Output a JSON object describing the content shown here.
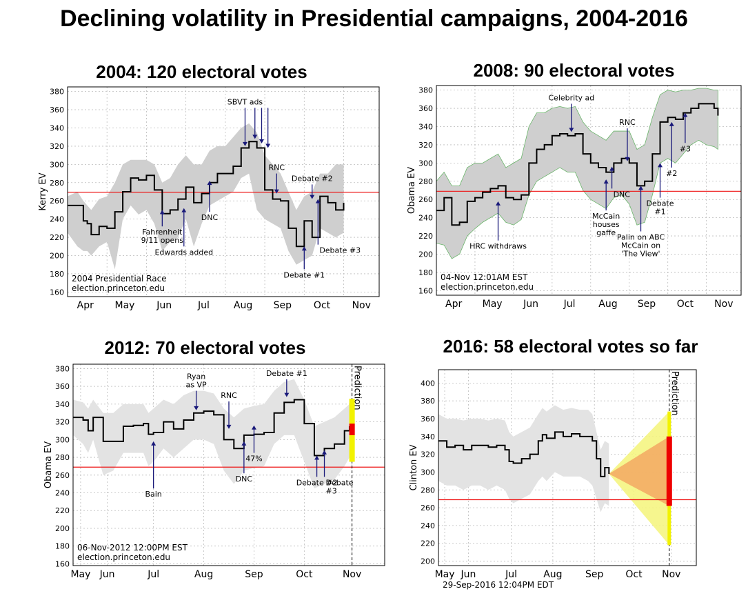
{
  "main_title": "Declining volatility in Presidential campaigns, 2004-2016",
  "chart_data": [
    {
      "type": "line",
      "title": "2004: 120 electoral votes",
      "ylabel": "Kerry EV",
      "ylim": [
        155,
        385
      ],
      "yticks": [
        160,
        180,
        200,
        220,
        240,
        260,
        280,
        300,
        320,
        340,
        360,
        380
      ],
      "xlim": [
        0,
        7.9
      ],
      "months": [
        "Apr",
        "May",
        "Jun",
        "Jul",
        "Aug",
        "Sep",
        "Oct",
        "Nov"
      ],
      "threshold": 269.5,
      "series": [
        {
          "x": [
            0,
            0.25,
            0.4,
            0.5,
            0.6,
            0.8,
            1.0,
            1.2,
            1.4,
            1.6,
            1.8,
            2.0,
            2.2,
            2.4,
            2.6,
            2.8,
            3.0,
            3.2,
            3.4,
            3.6,
            3.8,
            4.0,
            4.2,
            4.4,
            4.6,
            4.8,
            5.0,
            5.2,
            5.4,
            5.6,
            5.8,
            6.0,
            6.2,
            6.4,
            6.6,
            6.8,
            7.0
          ],
          "y": [
            255,
            255,
            238,
            235,
            223,
            232,
            230,
            248,
            270,
            285,
            283,
            288,
            272,
            246,
            250,
            262,
            275,
            258,
            268,
            280,
            290,
            290,
            298,
            318,
            325,
            318,
            272,
            262,
            260,
            230,
            210,
            238,
            220,
            265,
            258,
            250,
            258
          ],
          "lower": [
            225,
            210,
            205,
            205,
            200,
            210,
            215,
            185,
            240,
            255,
            245,
            250,
            235,
            205,
            215,
            220,
            240,
            210,
            235,
            255,
            260,
            265,
            270,
            285,
            290,
            250,
            240,
            235,
            230,
            205,
            190,
            195,
            200,
            230,
            225,
            220,
            225
          ],
          "upper": [
            265,
            270,
            260,
            255,
            250,
            262,
            265,
            280,
            300,
            305,
            305,
            305,
            300,
            280,
            285,
            300,
            310,
            300,
            300,
            315,
            320,
            320,
            330,
            340,
            345,
            335,
            310,
            300,
            290,
            270,
            250,
            265,
            270,
            290,
            290,
            300,
            300
          ]
        }
      ],
      "annotations": [
        {
          "x": 2.4,
          "y": 232,
          "tip": 250,
          "lines": [
            "Fahrenheit",
            "9/11 opens"
          ],
          "pos": "below"
        },
        {
          "x": 2.95,
          "y": 210,
          "tip": 252,
          "lines": [
            "Edwards added"
          ],
          "pos": "below"
        },
        {
          "x": 3.6,
          "y": 248,
          "tip": 282,
          "lines": [
            "DNC"
          ],
          "pos": "below"
        },
        {
          "x": 4.5,
          "y": 362,
          "tip": 320,
          "lines": [
            "SBVT ads"
          ],
          "pos": "above"
        },
        {
          "x": 4.75,
          "y": 362,
          "tip": 328,
          "lines": [],
          "pos": "above"
        },
        {
          "x": 4.92,
          "y": 362,
          "tip": 323,
          "lines": [],
          "pos": "above"
        },
        {
          "x": 5.08,
          "y": 362,
          "tip": 318,
          "lines": [],
          "pos": "above"
        },
        {
          "x": 5.3,
          "y": 290,
          "tip": 268,
          "lines": [
            "RNC"
          ],
          "pos": "above"
        },
        {
          "x": 6.2,
          "y": 278,
          "tip": 262,
          "lines": [
            "Debate #2"
          ],
          "pos": "above"
        },
        {
          "x": 6.0,
          "y": 185,
          "tip": 210,
          "lines": [
            "Debate #1"
          ],
          "pos": "below"
        },
        {
          "x": 6.35,
          "y": 212,
          "tip": 262,
          "lines": [
            "Debate #3"
          ],
          "pos": "right"
        }
      ],
      "corner_text": [
        "2004 Presidential Race",
        "election.princeton.edu"
      ]
    },
    {
      "type": "line",
      "title": "2008: 90 electoral votes",
      "ylabel": "Obama EV",
      "ylim": [
        155,
        385
      ],
      "yticks": [
        160,
        180,
        200,
        220,
        240,
        260,
        280,
        300,
        320,
        340,
        360,
        380
      ],
      "xlim": [
        0,
        7.9
      ],
      "months": [
        "Apr",
        "May",
        "Jun",
        "Jul",
        "Aug",
        "Sep",
        "Oct",
        "Nov"
      ],
      "threshold": 269,
      "series": [
        {
          "x": [
            0,
            0.2,
            0.4,
            0.6,
            0.8,
            1.0,
            1.2,
            1.4,
            1.6,
            1.8,
            2.0,
            2.2,
            2.4,
            2.6,
            2.8,
            3.0,
            3.2,
            3.4,
            3.6,
            3.8,
            4.0,
            4.2,
            4.4,
            4.6,
            4.8,
            5.0,
            5.2,
            5.4,
            5.6,
            5.8,
            6.0,
            6.2,
            6.4,
            6.6,
            6.8,
            7.0,
            7.2,
            7.3
          ],
          "y": [
            248,
            262,
            232,
            235,
            258,
            262,
            268,
            272,
            275,
            262,
            260,
            265,
            300,
            315,
            320,
            330,
            332,
            330,
            332,
            310,
            300,
            295,
            290,
            300,
            305,
            300,
            275,
            280,
            310,
            345,
            350,
            348,
            355,
            360,
            365,
            365,
            360,
            352
          ],
          "lower": [
            212,
            210,
            195,
            200,
            220,
            228,
            235,
            240,
            245,
            235,
            232,
            238,
            265,
            280,
            285,
            290,
            295,
            290,
            290,
            270,
            260,
            255,
            250,
            262,
            265,
            255,
            232,
            235,
            265,
            300,
            305,
            300,
            310,
            320,
            325,
            320,
            318,
            315
          ],
          "upper": [
            280,
            290,
            275,
            275,
            295,
            300,
            300,
            305,
            310,
            295,
            300,
            305,
            340,
            355,
            355,
            360,
            362,
            360,
            362,
            345,
            335,
            330,
            325,
            335,
            335,
            335,
            315,
            320,
            350,
            375,
            380,
            378,
            380,
            380,
            382,
            382,
            380,
            380
          ]
        }
      ],
      "annotations": [
        {
          "x": 1.6,
          "y": 215,
          "tip": 258,
          "lines": [
            "HRC withdraws"
          ],
          "pos": "below"
        },
        {
          "x": 3.5,
          "y": 365,
          "tip": 334,
          "lines": [
            "Celebrity ad"
          ],
          "pos": "above"
        },
        {
          "x": 4.95,
          "y": 338,
          "tip": 302,
          "lines": [
            "RNC"
          ],
          "pos": "above"
        },
        {
          "x": 4.55,
          "y": 272,
          "tip": 296,
          "lines": [
            "DNC"
          ],
          "pos": "right"
        },
        {
          "x": 4.4,
          "y": 248,
          "tip": 282,
          "lines": [
            "McCain",
            "houses",
            "gaffe"
          ],
          "pos": "below"
        },
        {
          "x": 5.3,
          "y": 225,
          "tip": 275,
          "lines": [
            "Palin on ABC",
            "McCain on",
            "'The View'"
          ],
          "pos": "below"
        },
        {
          "x": 5.8,
          "y": 262,
          "tip": 300,
          "lines": [
            "Debate",
            "#1"
          ],
          "pos": "below"
        },
        {
          "x": 6.1,
          "y": 295,
          "tip": 345,
          "lines": [
            "#2"
          ],
          "pos": "below"
        },
        {
          "x": 6.45,
          "y": 322,
          "tip": 355,
          "lines": [
            "#3"
          ],
          "pos": "below"
        }
      ],
      "corner_text": [
        "04-Nov 12:01AM EST",
        "election.princeton.edu"
      ]
    },
    {
      "type": "line",
      "title": "2012: 70 electoral votes",
      "ylabel": "Obama EV",
      "ylim": [
        158,
        385
      ],
      "yticks": [
        160,
        180,
        200,
        220,
        240,
        260,
        280,
        300,
        320,
        340,
        360,
        380
      ],
      "xlim": [
        0,
        6.2
      ],
      "months": [
        "May",
        "Jun",
        "Jul",
        "Aug",
        "Sep",
        "Oct",
        "Nov"
      ],
      "month_x": [
        0.15,
        0.68,
        1.6,
        2.6,
        3.6,
        4.6,
        5.55
      ],
      "threshold": 269,
      "prediction_x": 5.55,
      "prediction_label": "Prediction",
      "prediction_range": [
        275,
        346
      ],
      "prediction_core": [
        305,
        318
      ],
      "series": [
        {
          "x": [
            0,
            0.2,
            0.3,
            0.4,
            0.6,
            0.8,
            1.0,
            1.2,
            1.4,
            1.5,
            1.6,
            1.8,
            2.0,
            2.2,
            2.4,
            2.6,
            2.8,
            3.0,
            3.2,
            3.4,
            3.6,
            3.8,
            4.0,
            4.2,
            4.4,
            4.6,
            4.8,
            5.0,
            5.2,
            5.4,
            5.5
          ],
          "y": [
            325,
            322,
            310,
            325,
            298,
            298,
            315,
            316,
            318,
            306,
            308,
            320,
            312,
            322,
            330,
            332,
            328,
            300,
            290,
            305,
            306,
            308,
            330,
            342,
            345,
            318,
            282,
            290,
            295,
            310,
            315
          ],
          "lower": [
            305,
            295,
            285,
            300,
            260,
            265,
            285,
            285,
            285,
            270,
            275,
            290,
            280,
            290,
            300,
            300,
            295,
            265,
            250,
            265,
            268,
            270,
            295,
            305,
            305,
            275,
            245,
            250,
            255,
            270,
            280
          ],
          "upper": [
            345,
            342,
            335,
            345,
            330,
            330,
            340,
            340,
            340,
            330,
            335,
            345,
            340,
            350,
            355,
            355,
            352,
            335,
            325,
            335,
            338,
            340,
            355,
            365,
            368,
            345,
            315,
            320,
            325,
            335,
            340
          ]
        }
      ],
      "annotations": [
        {
          "x": 1.6,
          "y": 245,
          "tip": 298,
          "lines": [
            "Bain"
          ],
          "pos": "below"
        },
        {
          "x": 2.45,
          "y": 355,
          "tip": 333,
          "lines": [
            "Ryan",
            "as VP"
          ],
          "pos": "above"
        },
        {
          "x": 3.1,
          "y": 343,
          "tip": 312,
          "lines": [
            "RNC"
          ],
          "pos": "above"
        },
        {
          "x": 3.4,
          "y": 262,
          "tip": 298,
          "lines": [
            "DNC"
          ],
          "pos": "below"
        },
        {
          "x": 3.6,
          "y": 285,
          "tip": 316,
          "lines": [
            "47%"
          ],
          "pos": "below"
        },
        {
          "x": 4.25,
          "y": 368,
          "tip": 348,
          "lines": [
            "Debate #1"
          ],
          "pos": "above"
        },
        {
          "x": 4.85,
          "y": 258,
          "tip": 282,
          "lines": [
            "Debate #2"
          ],
          "pos": "below"
        },
        {
          "x": 5.0,
          "y": 258,
          "tip": 288,
          "lines": [
            "Debate",
            "#3"
          ],
          "pos": "right"
        }
      ],
      "corner_text": [
        "06-Nov-2012 12:00PM EST",
        "election.princeton.edu"
      ]
    },
    {
      "type": "line",
      "title": "2016: 58 electoral votes so far",
      "ylabel": "Clinton EV",
      "ylim": [
        195,
        415
      ],
      "yticks": [
        200,
        220,
        240,
        260,
        280,
        300,
        320,
        340,
        360,
        380,
        400
      ],
      "xlim": [
        0,
        6.2
      ],
      "months": [
        "May",
        "Jun",
        "Jul",
        "Aug",
        "Sep",
        "Oct",
        "Nov"
      ],
      "month_x": [
        0.15,
        0.72,
        1.75,
        2.75,
        3.75,
        4.7,
        5.6
      ],
      "threshold": 269,
      "prediction_x": 5.55,
      "prediction_label": "Prediction",
      "forecast_start": [
        4.1,
        298
      ],
      "forecast_outer": [
        218,
        368
      ],
      "forecast_inner": [
        262,
        340
      ],
      "prediction_core": [
        262,
        340
      ],
      "series": [
        {
          "x": [
            0,
            0.2,
            0.4,
            0.6,
            0.8,
            1.0,
            1.2,
            1.4,
            1.6,
            1.7,
            1.8,
            2.0,
            2.2,
            2.4,
            2.5,
            2.6,
            2.8,
            3.0,
            3.2,
            3.4,
            3.6,
            3.7,
            3.8,
            3.9,
            4.0,
            4.1
          ],
          "y": [
            335,
            328,
            330,
            325,
            330,
            330,
            328,
            330,
            325,
            312,
            310,
            315,
            320,
            335,
            342,
            338,
            345,
            340,
            343,
            340,
            340,
            335,
            315,
            295,
            305,
            298
          ],
          "lower": [
            290,
            285,
            285,
            280,
            285,
            285,
            280,
            285,
            280,
            270,
            265,
            270,
            275,
            290,
            295,
            290,
            300,
            295,
            295,
            295,
            290,
            285,
            270,
            255,
            265,
            262
          ],
          "upper": [
            365,
            360,
            360,
            358,
            360,
            360,
            358,
            360,
            358,
            345,
            340,
            345,
            350,
            365,
            372,
            368,
            375,
            370,
            372,
            370,
            370,
            365,
            345,
            325,
            335,
            332
          ]
        }
      ],
      "annotations": [],
      "corner_text": [
        "29-Sep-2016 12:04PM EDT"
      ]
    }
  ]
}
